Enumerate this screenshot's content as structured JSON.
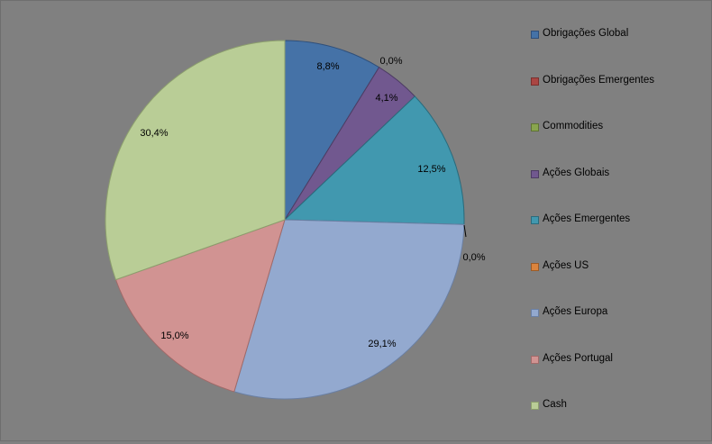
{
  "chart_data": {
    "type": "pie",
    "start_angle_deg": 0,
    "direction": "clockwise",
    "legend_position": "right",
    "slices": [
      {
        "name": "Obrigações Global",
        "value": 8.8,
        "label": "8,8%",
        "color": "#4572A7",
        "border": "#2f4f7a"
      },
      {
        "name": "Obrigações Emergentes",
        "value": 0.0,
        "label": "0,0%",
        "color": "#AA4643",
        "border": "#7a2f2d"
      },
      {
        "name": "Commodities",
        "value": 0.0,
        "label": "",
        "color": "#89A54E",
        "border": "#5e7334"
      },
      {
        "name": "Ações Globais",
        "value": 4.1,
        "label": "4,1%",
        "color": "#71588F",
        "border": "#4d3c63"
      },
      {
        "name": "Ações Emergentes",
        "value": 12.5,
        "label": "12,5%",
        "color": "#4198AF",
        "border": "#2a6b7c"
      },
      {
        "name": "Ações US",
        "value": 0.0,
        "label": "0,0%",
        "color": "#DB843D",
        "border": "#9a5b28"
      },
      {
        "name": "Ações Europa",
        "value": 29.1,
        "label": "29,1%",
        "color": "#93A9CF",
        "border": "#6a7fa3"
      },
      {
        "name": "Ações Portugal",
        "value": 15.0,
        "label": "15,0%",
        "color": "#D19392",
        "border": "#a06a69"
      },
      {
        "name": "Cash",
        "value": 30.4,
        "label": "30,4%",
        "color": "#B9CD96",
        "border": "#8c9e6d"
      }
    ]
  }
}
